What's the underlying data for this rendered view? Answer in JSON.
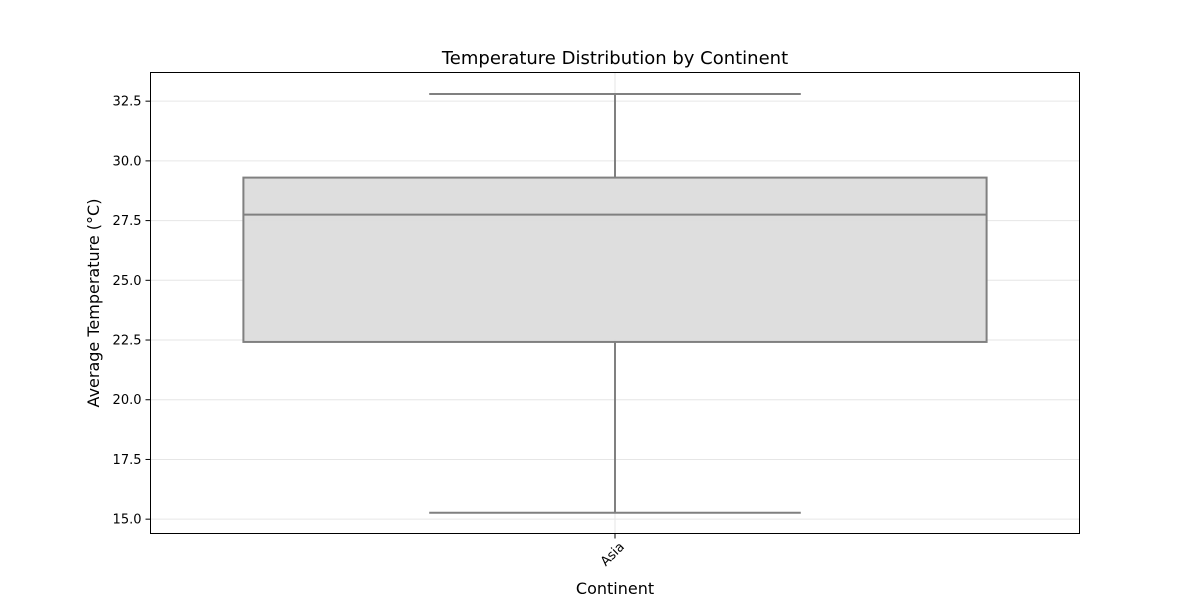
{
  "chart_data": {
    "type": "box",
    "title": "Temperature Distribution by Continent",
    "xlabel": "Continent",
    "ylabel": "Average Temperature (°C)",
    "categories": [
      "Asia"
    ],
    "boxes": [
      {
        "category": "Asia",
        "whisker_low": 15.27,
        "q1": 22.42,
        "median": 27.75,
        "q3": 29.3,
        "whisker_high": 32.8
      }
    ],
    "ylim": [
      14.4,
      33.7
    ],
    "yticks": [
      "15.0",
      "17.5",
      "20.0",
      "22.5",
      "25.0",
      "27.5",
      "30.0",
      "32.5"
    ],
    "grid": true,
    "colors": {
      "box_fill": "#dcdcdc",
      "box_edge": "#808080",
      "grid": "#e6e6e6",
      "axes": "#000000"
    }
  }
}
